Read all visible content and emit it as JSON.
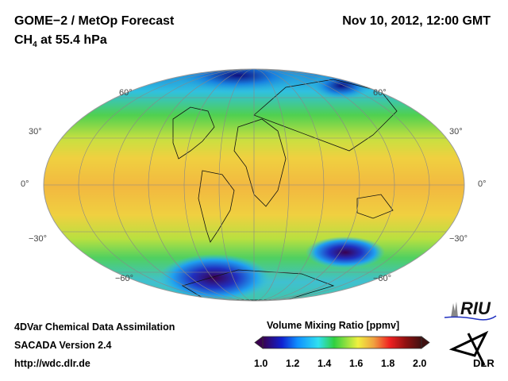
{
  "header": {
    "title": "GOME−2 / MetOp Forecast",
    "species": "CH",
    "species_sub": "4",
    "level": " at 55.4 hPa",
    "datetime": "Nov 10, 2012, 12:00 GMT"
  },
  "map": {
    "projection": "Mollweide",
    "lat_labels_left": [
      "60°",
      "30°",
      "0°",
      "−30°",
      "−60°"
    ],
    "lat_labels_right": [
      "60°",
      "30°",
      "0°",
      "−30°",
      "−60°"
    ]
  },
  "colorbar": {
    "title": "Volume Mixing Ratio [ppmv]",
    "ticks": [
      "1.0",
      "1.2",
      "1.4",
      "1.6",
      "1.8",
      "2.0"
    ],
    "range": [
      1.0,
      2.0
    ],
    "colors": [
      "#3a0050",
      "#1020d0",
      "#1090ff",
      "#30e0f0",
      "#30d040",
      "#f0f040",
      "#f0a040",
      "#f02020",
      "#901010",
      "#401010"
    ]
  },
  "footer": {
    "line1": "4DVar Chemical Data Assimilation",
    "line2": "SACADA Version 2.4",
    "line3": "http://wdc.dlr.de"
  },
  "logos": {
    "riu": "RIU",
    "dlr": "DLR"
  }
}
